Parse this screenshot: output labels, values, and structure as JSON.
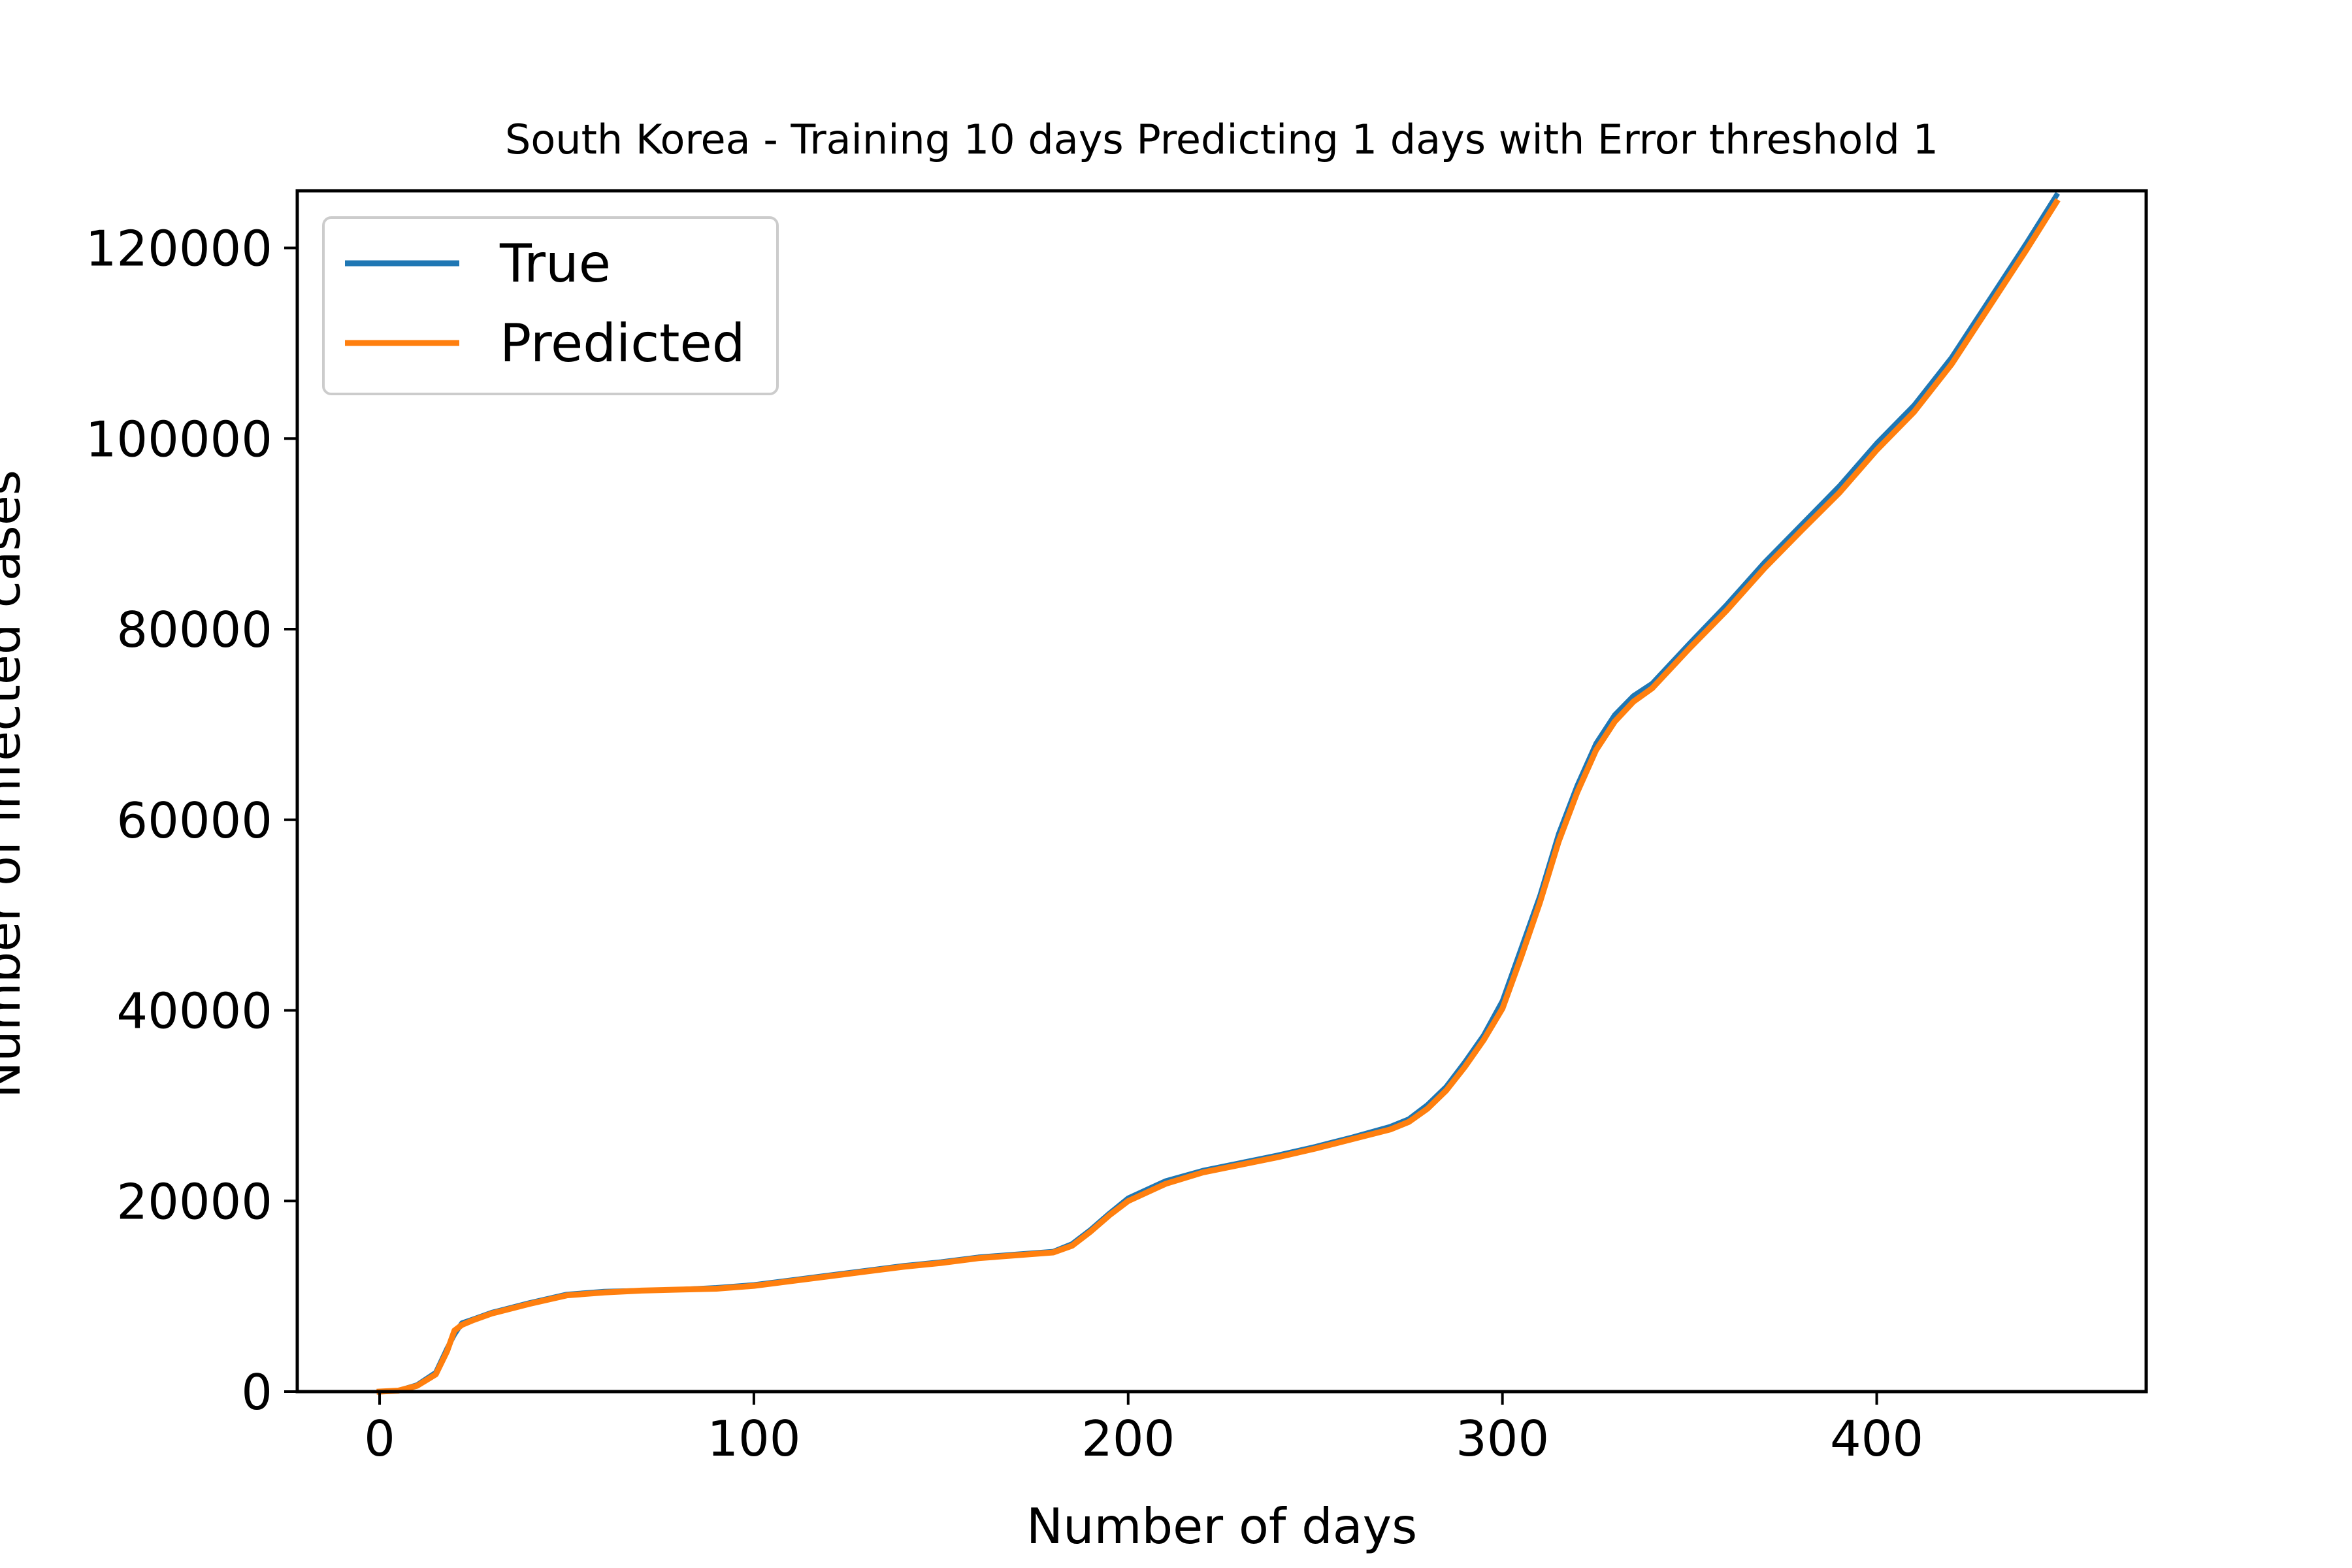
{
  "chart_data": {
    "type": "line",
    "title": "South Korea - Training 10 days Predicting 1 days with Error threshold 1",
    "xlabel": "Number of days",
    "ylabel": "Number of infected cases",
    "xlim": [
      -22,
      472
    ],
    "ylim": [
      0,
      126000
    ],
    "xticks": [
      0,
      100,
      200,
      300,
      400
    ],
    "yticks": [
      0,
      20000,
      40000,
      60000,
      80000,
      100000,
      120000
    ],
    "grid": false,
    "legend": "upper-left",
    "series": [
      {
        "name": "True",
        "color": "#1f77b4",
        "x": [
          0,
          5,
          10,
          15,
          18,
          20,
          22,
          25,
          30,
          40,
          50,
          60,
          70,
          80,
          90,
          100,
          110,
          120,
          130,
          140,
          150,
          160,
          170,
          180,
          185,
          190,
          195,
          200,
          210,
          220,
          230,
          240,
          250,
          260,
          270,
          275,
          280,
          285,
          290,
          295,
          300,
          305,
          310,
          315,
          320,
          325,
          330,
          335,
          340,
          350,
          360,
          370,
          380,
          390,
          400,
          410,
          420,
          430,
          440,
          448
        ],
        "y": [
          0,
          100,
          700,
          2000,
          4500,
          6000,
          7200,
          7600,
          8300,
          9300,
          10200,
          10500,
          10600,
          10700,
          10900,
          11200,
          11700,
          12200,
          12700,
          13200,
          13600,
          14100,
          14400,
          14700,
          15500,
          17000,
          18700,
          20300,
          22100,
          23200,
          24000,
          24800,
          25700,
          26700,
          27800,
          28600,
          30100,
          32000,
          34600,
          37400,
          41000,
          46500,
          52000,
          58500,
          63600,
          68000,
          71000,
          73000,
          74300,
          78500,
          82600,
          87000,
          91000,
          95000,
          99500,
          103500,
          108500,
          114500,
          120500,
          125500
        ]
      },
      {
        "name": "Predicted",
        "color": "#ff7f0e",
        "x": [
          0,
          5,
          10,
          15,
          18,
          20,
          22,
          25,
          30,
          40,
          50,
          60,
          70,
          80,
          90,
          100,
          110,
          120,
          130,
          140,
          150,
          160,
          170,
          180,
          185,
          190,
          195,
          200,
          210,
          220,
          230,
          240,
          250,
          260,
          270,
          275,
          280,
          285,
          290,
          295,
          300,
          305,
          310,
          315,
          320,
          325,
          330,
          335,
          340,
          350,
          360,
          370,
          380,
          390,
          400,
          410,
          420,
          430,
          440,
          448
        ],
        "y": [
          0,
          100,
          600,
          1800,
          4200,
          6400,
          7000,
          7500,
          8200,
          9200,
          10100,
          10400,
          10600,
          10700,
          10800,
          11100,
          11600,
          12100,
          12600,
          13100,
          13500,
          14000,
          14300,
          14600,
          15300,
          16800,
          18500,
          20000,
          21800,
          23000,
          23800,
          24600,
          25500,
          26500,
          27500,
          28300,
          29700,
          31600,
          34100,
          36900,
          40200,
          45600,
          51300,
          57700,
          62900,
          67300,
          70300,
          72400,
          73800,
          78000,
          82000,
          86400,
          90400,
          94300,
          98800,
          102800,
          107800,
          113800,
          119800,
          124800
        ]
      }
    ]
  }
}
